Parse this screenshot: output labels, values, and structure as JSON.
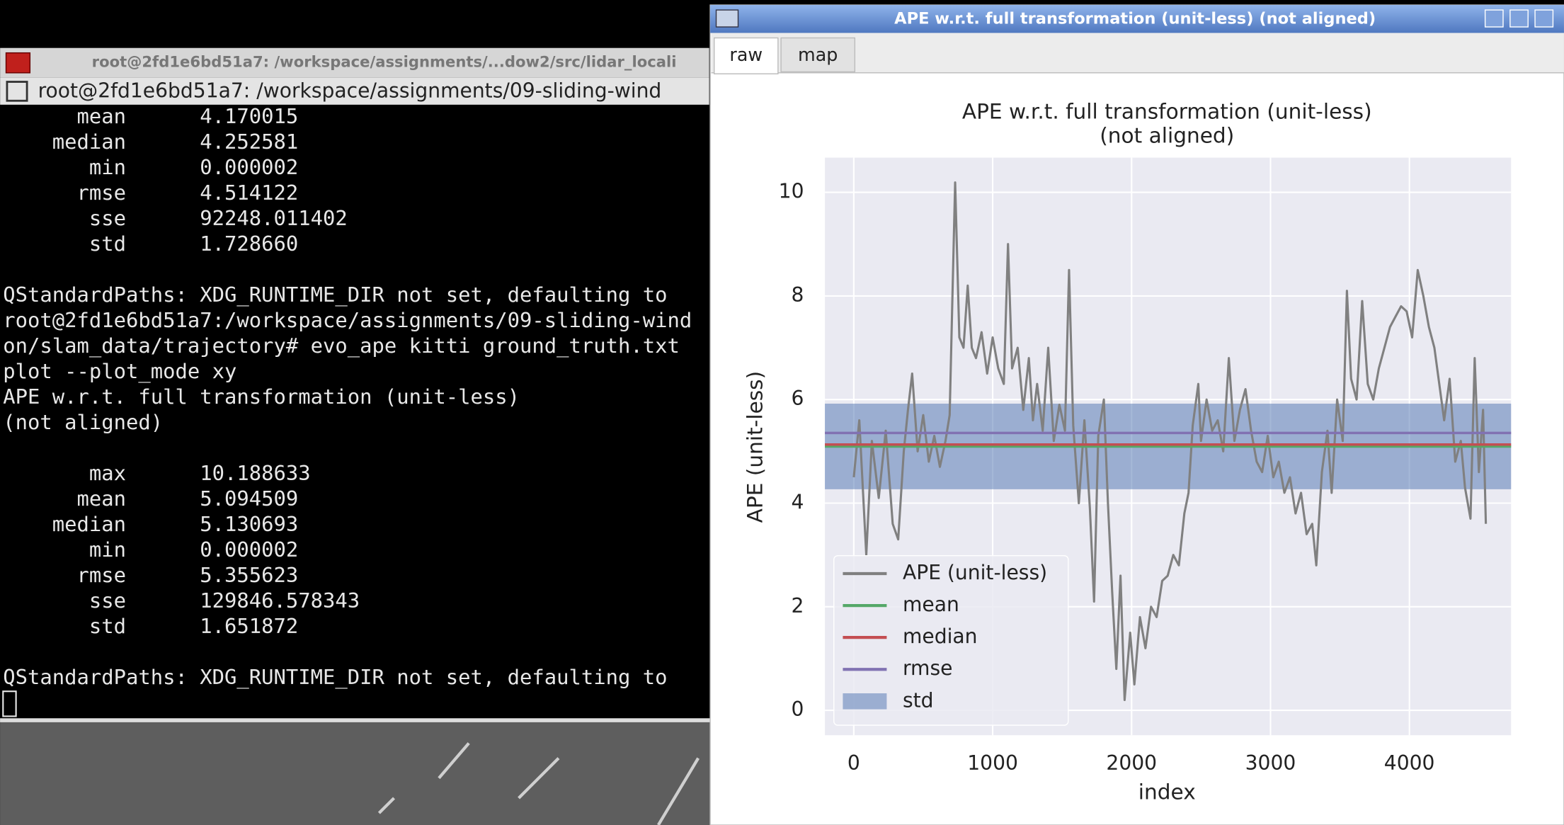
{
  "terminal": {
    "window_title": "root@2fd1e6bd51a7: /workspace/assignments/...dow2/src/lidar_locali",
    "tab_title": "root@2fd1e6bd51a7: /workspace/assignments/09-sliding-wind",
    "blocks": [
      [
        "      mean      4.170015",
        "    median      4.252581",
        "       min      0.000002",
        "      rmse      4.514122",
        "       sse      92248.011402",
        "       std      1.728660"
      ],
      [
        "QStandardPaths: XDG_RUNTIME_DIR not set, defaulting to",
        "root@2fd1e6bd51a7:/workspace/assignments/09-sliding-wind",
        "on/slam_data/trajectory# evo_ape kitti ground_truth.txt",
        "plot --plot_mode xy",
        "APE w.r.t. full transformation (unit-less)",
        "(not aligned)"
      ],
      [
        "       max      10.188633",
        "      mean      5.094509",
        "    median      5.130693",
        "       min      0.000002",
        "      rmse      5.355623",
        "       sse      129846.578343",
        "       std      1.651872"
      ],
      [
        "QStandardPaths: XDG_RUNTIME_DIR not set, defaulting to"
      ]
    ]
  },
  "plot_window": {
    "title": "APE w.r.t. full transformation (unit-less) (not aligned)",
    "tabs": [
      "raw",
      "map"
    ],
    "chart_data": {
      "type": "line",
      "title": "APE w.r.t. full transformation (unit-less)",
      "subtitle": "(not aligned)",
      "x_label": "index",
      "y_label": "APE (unit-less)",
      "x": [
        0,
        40,
        90,
        130,
        180,
        230,
        280,
        320,
        360,
        390,
        420,
        460,
        500,
        540,
        580,
        620,
        660,
        690,
        710,
        730,
        760,
        790,
        820,
        850,
        880,
        920,
        960,
        1000,
        1040,
        1080,
        1110,
        1140,
        1180,
        1220,
        1260,
        1290,
        1320,
        1360,
        1400,
        1440,
        1480,
        1520,
        1550,
        1580,
        1620,
        1660,
        1700,
        1730,
        1760,
        1800,
        1830,
        1860,
        1890,
        1920,
        1950,
        1990,
        2020,
        2060,
        2100,
        2140,
        2180,
        2220,
        2260,
        2300,
        2340,
        2380,
        2410,
        2440,
        2480,
        2500,
        2540,
        2580,
        2620,
        2660,
        2700,
        2740,
        2780,
        2820,
        2860,
        2900,
        2940,
        2980,
        3020,
        3060,
        3100,
        3140,
        3180,
        3220,
        3260,
        3300,
        3330,
        3370,
        3410,
        3440,
        3480,
        3520,
        3550,
        3580,
        3620,
        3660,
        3700,
        3740,
        3780,
        3820,
        3860,
        3900,
        3940,
        3980,
        4020,
        4060,
        4100,
        4140,
        4180,
        4220,
        4250,
        4290,
        4330,
        4370,
        4400,
        4440,
        4470,
        4500,
        4530,
        4550
      ],
      "series": [
        {
          "name": "APE (unit-less)",
          "color": "#808080",
          "values": [
            4.5,
            5.6,
            3.0,
            5.2,
            4.1,
            5.4,
            3.6,
            3.3,
            5.0,
            5.8,
            6.5,
            5.0,
            5.7,
            4.8,
            5.3,
            4.7,
            5.2,
            5.7,
            8.0,
            10.19,
            7.2,
            7.0,
            8.2,
            7.0,
            6.8,
            7.3,
            6.5,
            7.2,
            6.6,
            6.3,
            9.0,
            6.6,
            7.0,
            5.8,
            6.8,
            5.6,
            6.3,
            5.4,
            7.0,
            5.2,
            5.9,
            5.4,
            8.5,
            5.5,
            4.0,
            5.6,
            3.9,
            2.1,
            5.3,
            6.0,
            4.0,
            2.3,
            0.8,
            2.6,
            0.2,
            1.5,
            0.5,
            1.8,
            1.2,
            2.0,
            1.8,
            2.5,
            2.6,
            3.0,
            2.8,
            3.8,
            4.2,
            5.5,
            6.3,
            5.2,
            6.0,
            5.4,
            5.6,
            5.0,
            6.8,
            5.2,
            5.8,
            6.2,
            5.4,
            4.8,
            4.6,
            5.3,
            4.5,
            4.8,
            4.2,
            4.5,
            3.8,
            4.2,
            3.4,
            3.6,
            2.8,
            4.6,
            5.4,
            4.2,
            6.0,
            5.2,
            8.1,
            6.4,
            6.0,
            7.9,
            6.3,
            6.0,
            6.6,
            7.0,
            7.4,
            7.6,
            7.8,
            7.7,
            7.2,
            8.5,
            8.0,
            7.4,
            7.0,
            6.2,
            5.6,
            6.4,
            4.8,
            5.2,
            4.3,
            3.7,
            6.8,
            4.6,
            5.8,
            3.6
          ]
        }
      ],
      "hlines": [
        {
          "name": "mean",
          "color": "#55a868",
          "value": 5.094509
        },
        {
          "name": "median",
          "color": "#c44e52",
          "value": 5.130693
        },
        {
          "name": "rmse",
          "color": "#8172b2",
          "value": 5.355623
        }
      ],
      "band": {
        "name": "std",
        "color": "#4c72b0",
        "value": 1.651872
      },
      "xlim": [
        -208,
        4732
      ],
      "ylim": [
        -0.48,
        10.67
      ],
      "xticks": [
        0,
        1000,
        2000,
        3000,
        4000
      ],
      "yticks": [
        0,
        2,
        4,
        6,
        8,
        10
      ],
      "grid": true,
      "legend": "lower left"
    }
  }
}
